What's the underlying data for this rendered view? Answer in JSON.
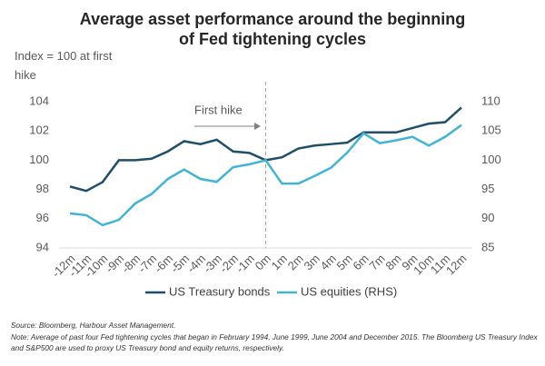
{
  "chart_data": {
    "type": "line",
    "title": "Average asset performance around the beginning of Fed tightening cycles",
    "y_label": "Index = 100 at first hike",
    "annotation": "First hike",
    "categories": [
      "-12m",
      "-11m",
      "-10m",
      "-9m",
      "-8m",
      "-7m",
      "-6m",
      "-5m",
      "-4m",
      "-3m",
      "-2m",
      "-1m",
      "0m",
      "1m",
      "2m",
      "3m",
      "4m",
      "5m",
      "6m",
      "7m",
      "8m",
      "9m",
      "10m",
      "11m",
      "12m"
    ],
    "series": [
      {
        "name": "US Treasury bonds",
        "color": "#1f4e6b",
        "values": [
          98.2,
          97.9,
          98.5,
          100.0,
          100.0,
          100.1,
          100.6,
          101.3,
          101.1,
          101.4,
          100.6,
          100.5,
          100.0,
          100.2,
          100.8,
          101.0,
          101.1,
          101.2,
          101.9,
          101.9,
          101.9,
          102.2,
          102.5,
          102.6,
          103.6
        ]
      },
      {
        "name": "US equities (RHS)",
        "color": "#3fb4d6",
        "axis": "y2",
        "values": [
          90.9,
          90.6,
          88.9,
          89.8,
          92.6,
          94.2,
          96.8,
          98.4,
          96.8,
          96.3,
          98.8,
          99.3,
          100.0,
          96.0,
          96.0,
          97.3,
          98.7,
          101.3,
          104.6,
          102.9,
          103.4,
          104.0,
          102.5,
          104.0,
          106.0
        ]
      }
    ],
    "ylim": [
      94,
      104
    ],
    "yticks": [
      94,
      96,
      98,
      100,
      102,
      104
    ],
    "y2lim": [
      85,
      110
    ],
    "y2ticks": [
      85,
      90,
      95,
      100,
      105,
      110
    ],
    "source": "Source: Bloomberg, Harbour Asset Management.",
    "note": "Note: Average of past four Fed tightening cycles that began in February 1994, June 1999, June 2004 and December 2015.  The Bloomberg US Treasury Index and S&P500 are used to proxy US Treasury bond and equity returns, respectively."
  }
}
